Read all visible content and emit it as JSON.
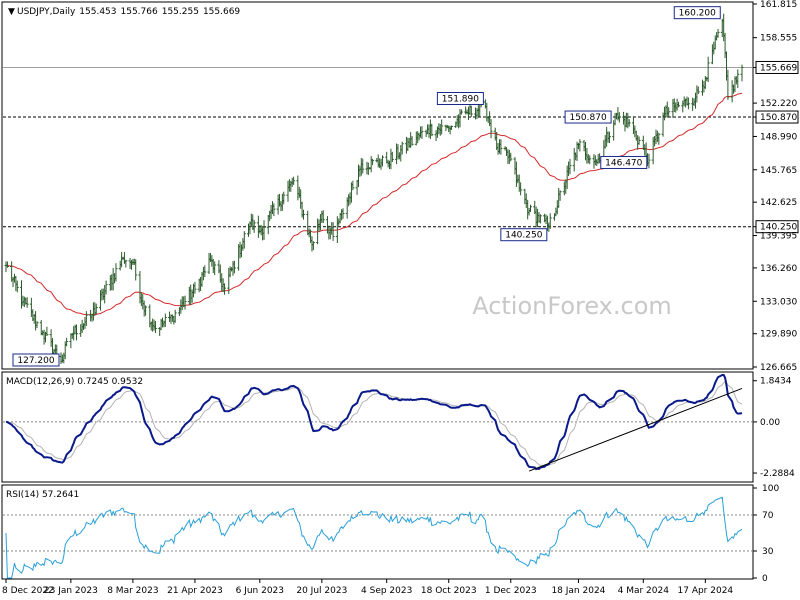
{
  "chart_data": {
    "type": "ohlc",
    "symbol": "USDJPY",
    "timeframe": "Daily",
    "last_ohlc": {
      "open": "155.453",
      "high": "155.766",
      "low": "155.255",
      "close": "155.669"
    },
    "ylim": [
      126.665,
      161.815
    ],
    "y_ticks": [
      "161.815",
      "158.555",
      "155.669",
      "152.220",
      "150.870",
      "148.990",
      "145.765",
      "142.625",
      "140.250",
      "139.395",
      "136.260",
      "133.030",
      "129.890",
      "126.665"
    ],
    "x_ticks": [
      "8 Dec 2022",
      "23 Jan 2023",
      "8 Mar 2023",
      "21 Apr 2023",
      "6 Jun 2023",
      "20 Jul 2023",
      "4 Sep 2023",
      "18 Oct 2023",
      "1 Dec 2023",
      "18 Jan 2024",
      "4 Mar 2024",
      "17 Apr 2024"
    ],
    "price_anchors": [
      [
        "8 Dec 2022",
        136.5
      ],
      [
        "20 Dec 2022",
        133.0
      ],
      [
        "3 Jan 2023",
        130.0
      ],
      [
        "16 Jan 2023",
        127.2
      ],
      [
        "23 Jan 2023",
        129.8
      ],
      [
        "6 Feb 2023",
        131.5
      ],
      [
        "1 Mar 2023",
        137.2
      ],
      [
        "8 Mar 2023",
        136.8
      ],
      [
        "15 Mar 2023",
        132.8
      ],
      [
        "24 Mar 2023",
        130.4
      ],
      [
        "5 Apr 2023",
        131.5
      ],
      [
        "21 Apr 2023",
        134.2
      ],
      [
        "2 May 2023",
        137.0
      ],
      [
        "12 May 2023",
        134.3
      ],
      [
        "30 May 2023",
        140.6
      ],
      [
        "6 Jun 2023",
        139.8
      ],
      [
        "30 Jun 2023",
        144.7
      ],
      [
        "13 Jul 2023",
        138.5
      ],
      [
        "20 Jul 2023",
        141.5
      ],
      [
        "28 Jul 2023",
        139.3
      ],
      [
        "17 Aug 2023",
        146.3
      ],
      [
        "4 Sep 2023",
        146.5
      ],
      [
        "3 Oct 2023",
        149.7
      ],
      [
        "18 Oct 2023",
        149.8
      ],
      [
        "31 Oct 2023",
        151.3
      ],
      [
        "13 Nov 2023",
        151.89
      ],
      [
        "21 Nov 2023",
        147.9
      ],
      [
        "1 Dec 2023",
        146.8
      ],
      [
        "7 Dec 2023",
        144.0
      ],
      [
        "14 Dec 2023",
        141.8
      ],
      [
        "28 Dec 2023",
        140.25
      ],
      [
        "18 Jan 2024",
        148.2
      ],
      [
        "31 Jan 2024",
        146.47
      ],
      [
        "13 Feb 2024",
        150.87
      ],
      [
        "23 Feb 2024",
        150.3
      ],
      [
        "8 Mar 2024",
        146.7
      ],
      [
        "19 Mar 2024",
        151.2
      ],
      [
        "10 Apr 2024",
        152.8
      ],
      [
        "17 Apr 2024",
        154.6
      ],
      [
        "29 Apr 2024",
        160.2
      ],
      [
        "3 May 2024",
        152.8
      ],
      [
        "13 May 2024",
        155.669
      ]
    ],
    "ma_color": "#d42a2a",
    "bar_color": "#2a5a2a",
    "annotations": [
      {
        "label": "160.200",
        "date": "29 Apr 2024",
        "value": 160.2,
        "pos": "above-left"
      },
      {
        "label": "151.890",
        "date": "13 Nov 2023",
        "value": 151.89,
        "pos": "above-left"
      },
      {
        "label": "150.870",
        "date": "13 Feb 2024",
        "value": 150.87,
        "pos": "left"
      },
      {
        "label": "146.470",
        "date": "31 Jan 2024",
        "value": 146.47,
        "pos": "right"
      },
      {
        "label": "140.250",
        "date": "28 Dec 2023",
        "value": 140.25,
        "pos": "below-left"
      },
      {
        "label": "127.200",
        "date": "16 Jan 2023",
        "value": 127.2,
        "pos": "below-left"
      }
    ],
    "levels": [
      {
        "value": 150.87,
        "label": "150.870",
        "style": "dashed"
      },
      {
        "value": 140.25,
        "label": "140.250",
        "style": "dashed"
      },
      {
        "value": 155.669,
        "label": "155.669",
        "style": "solid-gray"
      }
    ],
    "macd": {
      "title": "MACD(12,26,9) 0.7245 0.9532",
      "ylim": [
        -2.6,
        2.1
      ],
      "ticks": [
        "1.8434",
        "0.00",
        "-2.2884"
      ],
      "macd_color": "#0a1a8a",
      "signal_color": "#b4b4b4",
      "trendline": {
        "from": [
          "14 Dec 2023",
          -2.2
        ],
        "to": [
          "13 May 2024",
          1.5
        ]
      }
    },
    "rsi": {
      "title": "RSI(14) 57.2641",
      "ylim": [
        0,
        100
      ],
      "ticks": [
        "100",
        "70",
        "30",
        "0"
      ],
      "levels": [
        70,
        30
      ],
      "line_color": "#2aa0d8"
    },
    "watermark": "ActionForex.com"
  }
}
